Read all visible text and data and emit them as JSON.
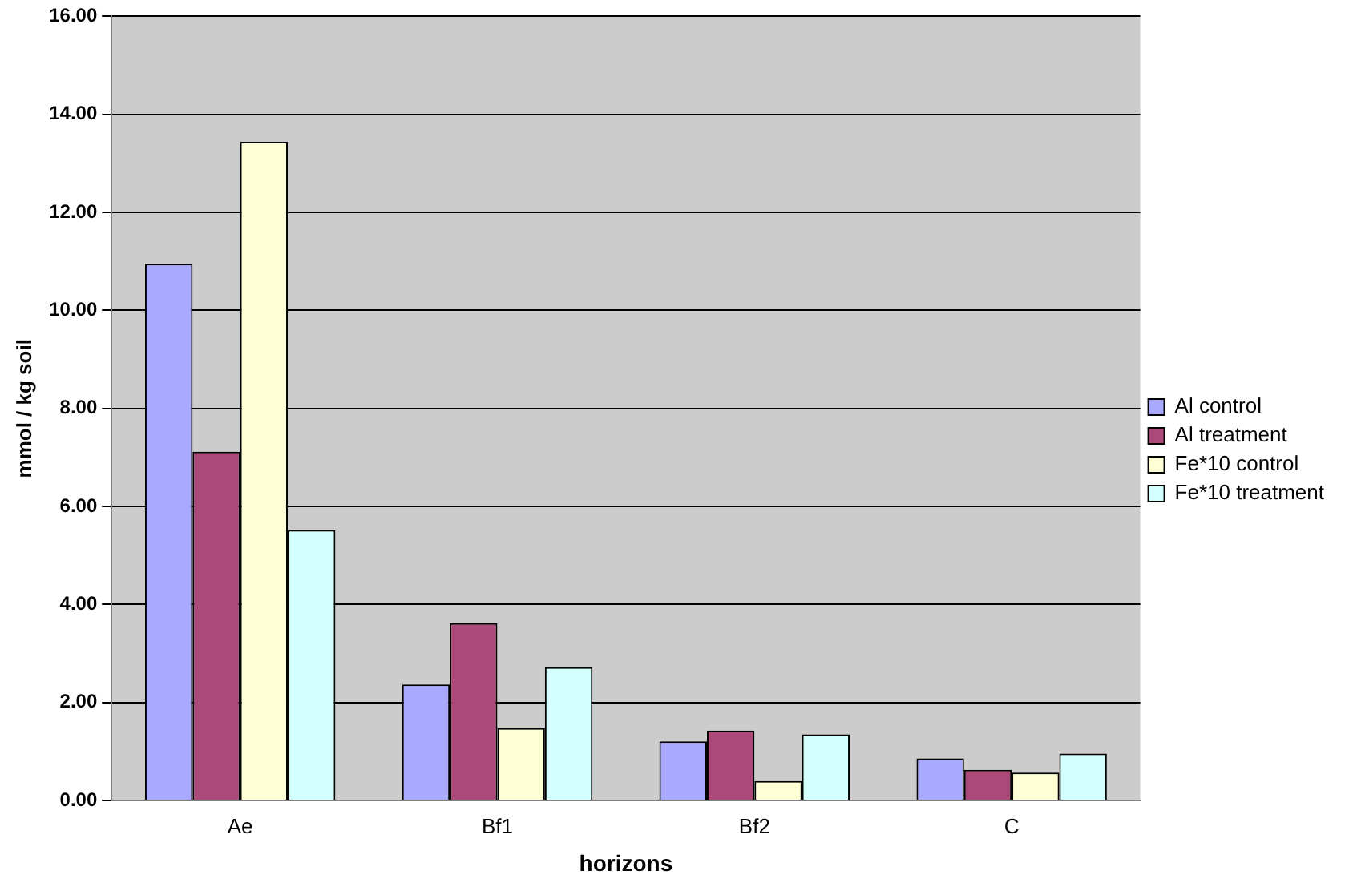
{
  "chart_data": {
    "type": "bar",
    "xlabel": "horizons",
    "ylabel": "mmol / kg soil",
    "categories": [
      "Ae",
      "Bf1",
      "Bf2",
      "C"
    ],
    "series": [
      {
        "name": "Al control",
        "color": "#a9a9ff",
        "values": [
          10.95,
          2.37,
          1.21,
          0.86
        ]
      },
      {
        "name": "Al treatment",
        "color": "#ab4a78",
        "values": [
          7.12,
          3.62,
          1.43,
          0.63
        ]
      },
      {
        "name": "Fe*10 control",
        "color": "#ffffd5",
        "values": [
          13.44,
          1.48,
          0.4,
          0.57
        ]
      },
      {
        "name": "Fe*10 treatment",
        "color": "#d4ffff",
        "values": [
          5.52,
          2.72,
          1.35,
          0.96
        ]
      }
    ],
    "ylim": [
      0,
      16
    ],
    "yticks": [
      {
        "value": 0,
        "label": "0.00"
      },
      {
        "value": 2,
        "label": "2.00"
      },
      {
        "value": 4,
        "label": "4.00"
      },
      {
        "value": 6,
        "label": "6.00"
      },
      {
        "value": 8,
        "label": "8.00"
      },
      {
        "value": 10,
        "label": "10.00"
      },
      {
        "value": 12,
        "label": "12.00"
      },
      {
        "value": 14,
        "label": "14.00"
      },
      {
        "value": 16,
        "label": "16.00"
      }
    ],
    "grid": "y",
    "legend": "right"
  }
}
